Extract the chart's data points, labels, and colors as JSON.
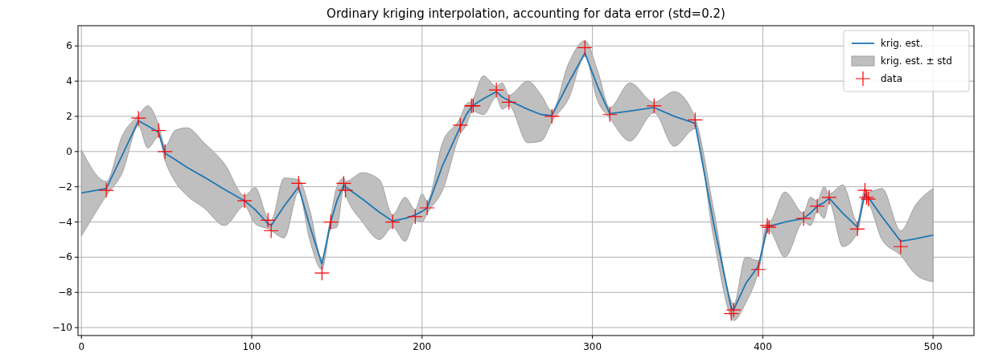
{
  "chart_data": {
    "type": "line",
    "title": "Ordinary kriging interpolation, accounting for data error (std=0.2)",
    "xlim": [
      -2,
      524
    ],
    "ylim": [
      -10.45,
      7.15
    ],
    "xticks": [
      0,
      100,
      200,
      300,
      400,
      500
    ],
    "yticks": [
      -10,
      -8,
      -6,
      -4,
      -2,
      0,
      2,
      4,
      6
    ],
    "grid": true,
    "legend": "top right",
    "annotations": [
      "krig. est. ± std"
    ],
    "series": [
      {
        "name": "krig. est.",
        "color": "#1f77b4",
        "x": [
          0,
          14.6,
          24,
          33.5,
          39,
          45.3,
          49.1,
          55,
          62,
          72,
          84,
          95.8,
          102,
          109.5,
          111.4,
          119,
          127.5,
          134,
          141.2,
          146.4,
          150,
          154,
          155,
          165,
          175,
          182.7,
          190,
          196,
          200,
          203,
          212,
          222.4,
          226,
          229.5,
          236,
          243.6,
          247,
          251,
          262,
          270,
          276.2,
          286,
          295.6,
          303,
          310.2,
          322,
          336.2,
          348,
          360.3,
          371,
          381.5,
          382.9,
          390,
          397.5,
          402.7,
          403.7,
          413,
          424,
          428,
          432,
          436,
          439,
          447,
          455.6,
          460,
          462,
          470,
          481,
          490,
          500
        ],
        "values": [
          -2.35,
          -2.1,
          -0.2,
          1.75,
          1.45,
          1.1,
          -0.1,
          -0.45,
          -0.9,
          -1.45,
          -2.15,
          -2.8,
          -3.3,
          -4.1,
          -4.2,
          -3.1,
          -2.0,
          -4.2,
          -6.4,
          -4.0,
          -2.8,
          -1.9,
          -2.0,
          -2.7,
          -3.45,
          -3.95,
          -3.8,
          -3.6,
          -3.4,
          -3.2,
          -0.8,
          1.4,
          2.1,
          2.6,
          3.0,
          3.4,
          3.1,
          2.9,
          2.4,
          2.1,
          2.05,
          3.9,
          5.6,
          3.7,
          2.15,
          2.3,
          2.5,
          2.0,
          1.6,
          -4.0,
          -8.9,
          -9.0,
          -7.5,
          -6.5,
          -4.3,
          -4.25,
          -4.0,
          -3.8,
          -3.5,
          -3.1,
          -2.9,
          -2.65,
          -3.5,
          -4.3,
          -2.4,
          -2.6,
          -3.7,
          -5.1,
          -4.95,
          -4.75
        ],
        "upper": [
          0.1,
          -1.7,
          0.9,
          2.05,
          2.6,
          1.5,
          0.3,
          1.2,
          1.35,
          0.5,
          -0.7,
          -2.5,
          -2.05,
          -3.8,
          -3.9,
          -1.5,
          -1.6,
          -3.3,
          -6.1,
          -3.7,
          -2.0,
          -1.5,
          -1.7,
          -1.2,
          -1.6,
          -3.6,
          -2.6,
          -3.3,
          -2.4,
          -2.8,
          0.5,
          1.9,
          2.7,
          2.9,
          4.3,
          3.7,
          3.9,
          3.2,
          4.0,
          3.2,
          2.3,
          5.0,
          6.3,
          4.6,
          2.5,
          3.9,
          2.8,
          3.4,
          1.9,
          -3.2,
          -8.5,
          -8.7,
          -6.0,
          -6.2,
          -4.0,
          -4.0,
          -2.3,
          -3.5,
          -2.6,
          -2.8,
          -2.0,
          -2.4,
          -1.9,
          -4.0,
          -2.1,
          -2.3,
          -2.1,
          -4.5,
          -3.0,
          -2.1
        ],
        "lower": [
          -4.8,
          -2.5,
          -1.2,
          1.45,
          0.2,
          0.85,
          -0.5,
          -1.7,
          -2.5,
          -3.2,
          -4.2,
          -3.1,
          -4.1,
          -4.4,
          -4.5,
          -4.9,
          -2.3,
          -5.0,
          -6.7,
          -4.4,
          -4.3,
          -2.1,
          -2.4,
          -4.0,
          -5.0,
          -4.3,
          -5.1,
          -3.9,
          -4.0,
          -3.5,
          -2.2,
          1.0,
          1.5,
          2.3,
          2.1,
          3.1,
          2.4,
          2.6,
          0.5,
          0.6,
          1.7,
          3.0,
          5.4,
          2.9,
          1.9,
          0.6,
          2.2,
          0.3,
          1.3,
          -4.8,
          -9.4,
          -9.6,
          -8.6,
          -6.8,
          -4.6,
          -4.5,
          -6.0,
          -4.0,
          -4.2,
          -3.4,
          -3.8,
          -2.9,
          -5.4,
          -4.6,
          -2.7,
          -2.9,
          -5.0,
          -5.9,
          -7.0,
          -7.4
        ]
      },
      {
        "name": "data",
        "type": "scatter",
        "color": "#ff0000",
        "marker": "cross",
        "x": [
          14.6,
          33.5,
          45.3,
          49.1,
          95.8,
          109.5,
          111.4,
          127.5,
          141.2,
          146.4,
          154,
          155,
          182.7,
          196,
          203,
          222.4,
          229,
          230,
          243.6,
          251,
          276.2,
          295.6,
          310.2,
          336.2,
          360.3,
          381.5,
          382.9,
          397.5,
          402.7,
          403.7,
          424,
          432,
          439,
          455.6,
          460,
          460.9,
          462,
          481
        ],
        "values": [
          -2.2,
          1.9,
          1.2,
          0.0,
          -2.8,
          -3.9,
          -4.5,
          -1.8,
          -6.9,
          -4.0,
          -1.8,
          -2.2,
          -4.0,
          -3.7,
          -3.2,
          1.5,
          2.6,
          2.6,
          3.5,
          2.8,
          2.0,
          5.9,
          2.1,
          2.6,
          1.8,
          -9.2,
          -9.0,
          -6.7,
          -4.2,
          -4.3,
          -3.8,
          -3.1,
          -2.6,
          -4.4,
          -2.2,
          -2.6,
          -2.7,
          -5.4
        ]
      }
    ]
  }
}
